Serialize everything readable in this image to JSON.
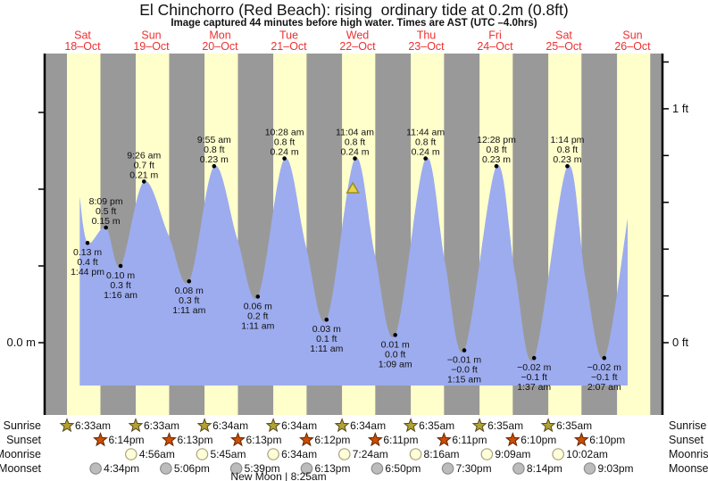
{
  "chart_data": {
    "type": "area",
    "title": "El Chinchorro (Red Beach): rising  ordinary tide at 0.2m (0.8ft)",
    "subtitle": "Image captured 44 minutes before high water. Times are AST (UTC –4.0hrs)",
    "time_axis": {
      "origin": "Sat 18-Oct 00:00",
      "unit": "hours",
      "days_shown": 9
    },
    "days": [
      {
        "name": "Sat",
        "date": "18–Oct"
      },
      {
        "name": "Sun",
        "date": "19–Oct"
      },
      {
        "name": "Mon",
        "date": "20–Oct"
      },
      {
        "name": "Tue",
        "date": "21–Oct"
      },
      {
        "name": "Wed",
        "date": "22–Oct"
      },
      {
        "name": "Thu",
        "date": "23–Oct"
      },
      {
        "name": "Fri",
        "date": "24–Oct"
      },
      {
        "name": "Sat",
        "date": "25–Oct"
      },
      {
        "name": "Sun",
        "date": "26–Oct"
      }
    ],
    "daylight_hours": [
      [
        6.55,
        18.23
      ],
      [
        6.55,
        18.22
      ],
      [
        6.57,
        18.22
      ],
      [
        6.57,
        18.2
      ],
      [
        6.57,
        18.18
      ],
      [
        6.58,
        18.18
      ],
      [
        6.58,
        18.17
      ],
      [
        6.58,
        18.17
      ],
      [
        6.58,
        18.17
      ]
    ],
    "ylim_m": [
      -0.056,
      0.377
    ],
    "y_axis_left": {
      "unit": "m",
      "tick_step_m": 0.1,
      "tick_values_m": [
        0,
        0.1,
        0.2,
        0.3
      ],
      "labeled_ticks": [
        {
          "value": 0,
          "label": "0.0 m"
        }
      ]
    },
    "y_axis_right": {
      "unit": "ft",
      "tick_step_ft": 0.2,
      "tick_values_ft": [
        0,
        0.2,
        0.4,
        0.6,
        0.8,
        1.0,
        1.2
      ],
      "labeled_ticks": [
        {
          "value": 1,
          "label": "1 ft"
        },
        {
          "value": 0,
          "label": "0 ft"
        }
      ]
    },
    "curve_floor_m": -0.056,
    "curve_points": [
      [
        11.0,
        0.19
      ],
      [
        13.73,
        0.13
      ],
      [
        20.15,
        0.15
      ],
      [
        25.27,
        0.1
      ],
      [
        33.43,
        0.21
      ],
      [
        42.0,
        0.14
      ],
      [
        49.18,
        0.08
      ],
      [
        57.92,
        0.23
      ],
      [
        66.0,
        0.135
      ],
      [
        73.18,
        0.06
      ],
      [
        82.47,
        0.24
      ],
      [
        90.0,
        0.125
      ],
      [
        97.18,
        0.03
      ],
      [
        107.07,
        0.24
      ],
      [
        114.0,
        0.115
      ],
      [
        121.15,
        0.01
      ],
      [
        131.73,
        0.24
      ],
      [
        138.5,
        0.105
      ],
      [
        145.25,
        -0.01
      ],
      [
        156.47,
        0.23
      ],
      [
        163.0,
        0.09
      ],
      [
        169.62,
        -0.02
      ],
      [
        181.23,
        0.23
      ],
      [
        187.5,
        0.085
      ],
      [
        194.12,
        -0.02
      ],
      [
        202.3,
        0.162
      ]
    ],
    "extremes": [
      {
        "kind": "low",
        "t": 13.73,
        "m": 0.13,
        "lines": [
          "0.13 m",
          "0.4 ft",
          "1:44 pm"
        ]
      },
      {
        "kind": "high",
        "t": 20.15,
        "m": 0.15,
        "lines": [
          "8:09 pm",
          "0.5 ft",
          "0.15 m"
        ]
      },
      {
        "kind": "low",
        "t": 25.27,
        "m": 0.1,
        "lines": [
          "0.10 m",
          "0.3 ft",
          "1:16 am"
        ]
      },
      {
        "kind": "high",
        "t": 33.43,
        "m": 0.21,
        "lines": [
          "9:26 am",
          "0.7 ft",
          "0.21 m"
        ]
      },
      {
        "kind": "low",
        "t": 49.18,
        "m": 0.08,
        "lines": [
          "0.08 m",
          "0.3 ft",
          "1:11 am"
        ]
      },
      {
        "kind": "high",
        "t": 57.92,
        "m": 0.23,
        "lines": [
          "9:55 am",
          "0.8 ft",
          "0.23 m"
        ]
      },
      {
        "kind": "low",
        "t": 73.18,
        "m": 0.06,
        "lines": [
          "0.06 m",
          "0.2 ft",
          "1:11 am"
        ]
      },
      {
        "kind": "high",
        "t": 82.47,
        "m": 0.24,
        "lines": [
          "10:28 am",
          "0.8 ft",
          "0.24 m"
        ]
      },
      {
        "kind": "low",
        "t": 97.18,
        "m": 0.03,
        "lines": [
          "0.03 m",
          "0.1 ft",
          "1:11 am"
        ]
      },
      {
        "kind": "high",
        "t": 107.07,
        "m": 0.24,
        "lines": [
          "11:04 am",
          "0.8 ft",
          "0.24 m"
        ]
      },
      {
        "kind": "low",
        "t": 121.15,
        "m": 0.01,
        "lines": [
          "0.01 m",
          "0.0 ft",
          "1:09 am"
        ]
      },
      {
        "kind": "high",
        "t": 131.73,
        "m": 0.24,
        "lines": [
          "11:44 am",
          "0.8 ft",
          "0.24 m"
        ]
      },
      {
        "kind": "low",
        "t": 145.25,
        "m": -0.01,
        "lines": [
          "−0.01 m",
          "−0.0 ft",
          "1:15 am"
        ]
      },
      {
        "kind": "high",
        "t": 156.47,
        "m": 0.23,
        "lines": [
          "12:28 pm",
          "0.8 ft",
          "0.23 m"
        ]
      },
      {
        "kind": "low",
        "t": 169.62,
        "m": -0.02,
        "lines": [
          "−0.02 m",
          "−0.1 ft",
          "1:37 am"
        ]
      },
      {
        "kind": "high",
        "t": 181.23,
        "m": 0.23,
        "lines": [
          "1:14 pm",
          "0.8 ft",
          "0.23 m"
        ]
      },
      {
        "kind": "low",
        "t": 194.12,
        "m": -0.02,
        "lines": [
          "−0.02 m",
          "−0.1 ft",
          "2:07 am"
        ]
      }
    ],
    "current_marker": {
      "t": 106.33,
      "m": 0.2,
      "shape": "triangle"
    }
  },
  "almanac": {
    "rows": [
      {
        "label": "Sunrise",
        "icon": "sunrise-star",
        "entries": [
          {
            "t": 6.55,
            "time": "6:33am"
          },
          {
            "t": 30.55,
            "time": "6:33am"
          },
          {
            "t": 54.57,
            "time": "6:34am"
          },
          {
            "t": 78.57,
            "time": "6:34am"
          },
          {
            "t": 102.57,
            "time": "6:34am"
          },
          {
            "t": 126.58,
            "time": "6:35am"
          },
          {
            "t": 150.58,
            "time": "6:35am"
          },
          {
            "t": 174.58,
            "time": "6:35am"
          }
        ]
      },
      {
        "label": "Sunset",
        "icon": "sunset-star",
        "entries": [
          {
            "t": 18.23,
            "time": "6:14pm"
          },
          {
            "t": 42.22,
            "time": "6:13pm"
          },
          {
            "t": 66.22,
            "time": "6:13pm"
          },
          {
            "t": 90.2,
            "time": "6:12pm"
          },
          {
            "t": 114.18,
            "time": "6:11pm"
          },
          {
            "t": 138.18,
            "time": "6:11pm"
          },
          {
            "t": 162.17,
            "time": "6:10pm"
          },
          {
            "t": 186.17,
            "time": "6:10pm"
          }
        ]
      },
      {
        "label": "Moonrise",
        "icon": "moonrise-circle",
        "entries": [
          {
            "t": 28.93,
            "time": "4:56am"
          },
          {
            "t": 53.75,
            "time": "5:45am"
          },
          {
            "t": 78.57,
            "time": "6:34am"
          },
          {
            "t": 103.4,
            "time": "7:24am"
          },
          {
            "t": 128.27,
            "time": "8:16am"
          },
          {
            "t": 153.15,
            "time": "9:09am"
          },
          {
            "t": 178.03,
            "time": "10:02am"
          }
        ]
      },
      {
        "label": "Moonset",
        "icon": "moonset-circle",
        "entries": [
          {
            "t": 16.57,
            "time": "4:34pm"
          },
          {
            "t": 41.1,
            "time": "5:06pm"
          },
          {
            "t": 65.65,
            "time": "5:39pm"
          },
          {
            "t": 90.22,
            "time": "6:13pm"
          },
          {
            "t": 114.83,
            "time": "6:50pm"
          },
          {
            "t": 139.5,
            "time": "7:30pm"
          },
          {
            "t": 164.23,
            "time": "8:14pm"
          },
          {
            "t": 189.05,
            "time": "9:03pm"
          }
        ]
      }
    ],
    "moon_phase_note": {
      "t": 80.42,
      "text": "New Moon | 8:25am"
    }
  },
  "colors": {
    "night_band": "#999999",
    "day_band": "#ffffcc",
    "tide_fill": "#9dacee",
    "day_label_red": "#ee3030",
    "axis": "#000000",
    "annotation_text": "#111111",
    "sunrise_star_fill": "#b3a233",
    "sunrise_star_stroke": "#55491c",
    "sunset_star_fill": "#cc4e00",
    "sunset_star_stroke": "#5e2500",
    "moonrise_fill": "#ffffd9",
    "moonrise_stroke": "#a9a27b",
    "moonset_fill": "#bcbcbc",
    "moonset_stroke": "#8c8c8c",
    "marker_fill": "#e8d44a",
    "marker_stroke": "#9a8d22"
  }
}
